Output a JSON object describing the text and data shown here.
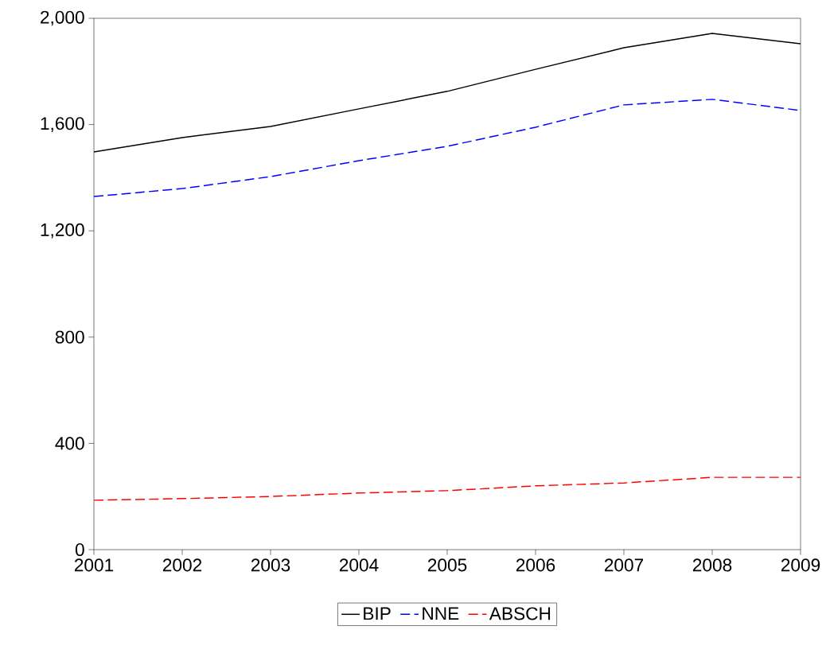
{
  "chart_data": {
    "type": "line",
    "x": [
      2001,
      2002,
      2003,
      2004,
      2005,
      2006,
      2007,
      2008,
      2009
    ],
    "series": [
      {
        "name": "BIP",
        "color": "#000000",
        "line_style": "solid",
        "values": [
          1497,
          1551,
          1593,
          1659,
          1725,
          1808,
          1889,
          1943,
          1904
        ]
      },
      {
        "name": "NNE",
        "color": "#0000ff",
        "line_style": "dashed",
        "values": [
          1329,
          1359,
          1404,
          1464,
          1518,
          1590,
          1674,
          1695,
          1653
        ]
      },
      {
        "name": "ABSCH",
        "color": "#ff0000",
        "line_style": "dashed",
        "values": [
          186,
          192,
          200,
          213,
          222,
          240,
          251,
          272,
          272
        ]
      }
    ],
    "xlim": [
      2001,
      2009
    ],
    "xticks": [
      2001,
      2002,
      2003,
      2004,
      2005,
      2006,
      2007,
      2008,
      2009
    ],
    "ylim": [
      0,
      2000
    ],
    "yticks": [
      0,
      {
        "value": 400,
        "label": "400"
      },
      {
        "value": 800,
        "label": "800"
      },
      {
        "value": 1200,
        "label": "1,200"
      },
      {
        "value": 1600,
        "label": "1,600"
      },
      {
        "value": 2000,
        "label": "2,000"
      }
    ],
    "legend": "bottom",
    "grid": false,
    "marker": "none"
  }
}
